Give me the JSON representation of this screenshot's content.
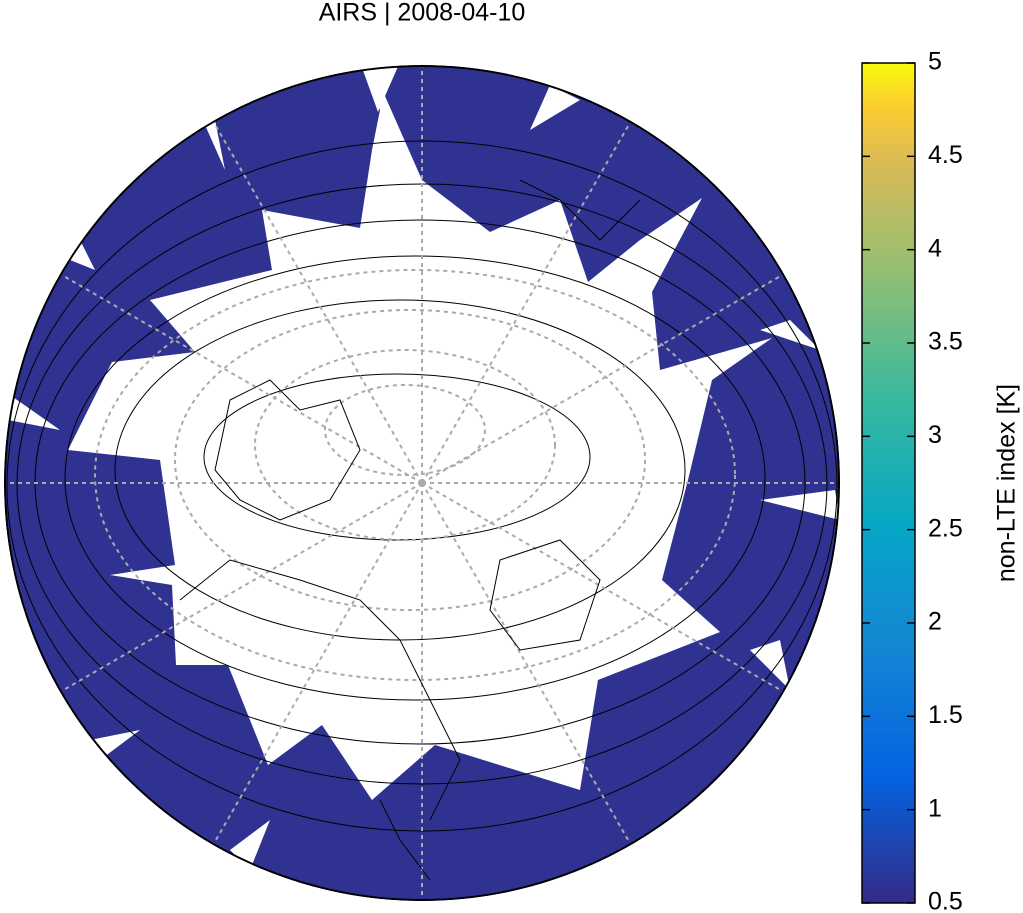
{
  "title": "AIRS | 2008-04-10",
  "colorbar": {
    "label": "non-LTE index [K]",
    "range": [
      0.5,
      5
    ],
    "ticks": [
      0.5,
      1,
      1.5,
      2,
      2.5,
      3,
      3.5,
      4,
      4.5,
      5
    ]
  }
}
